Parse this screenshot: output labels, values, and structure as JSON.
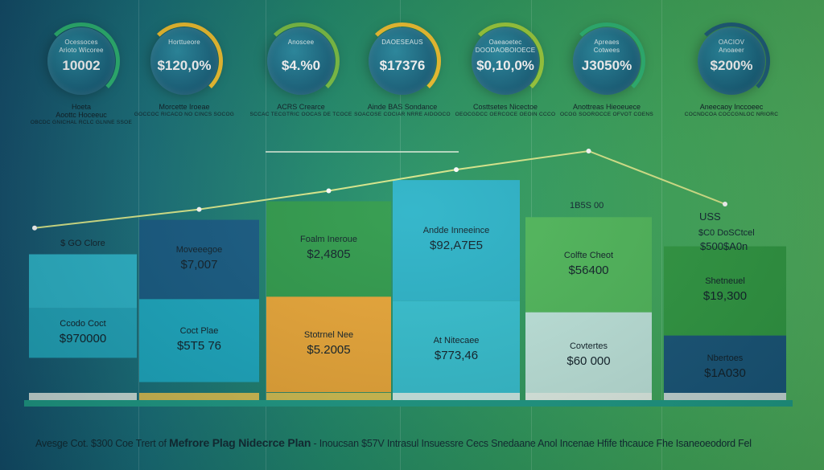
{
  "kpis": [
    {
      "label": "Ocessoces",
      "sub": "Arioto Wicoree",
      "value": "10002",
      "caption": "Hoeta",
      "caption2": "Aoottc Hoceeuc",
      "small": "OBCDC GNICHAL RCLC GLNNE SSOE",
      "arc": "#2bb673"
    },
    {
      "label": "Horttueore",
      "sub": "",
      "value": "$120,0%",
      "caption": "Morcette Iroeae",
      "caption2": "",
      "small": "GOCCOC RICACO NO CINCS SOCOG",
      "arc": "#f2c12e"
    },
    {
      "label": "Anoscee",
      "sub": "",
      "value": "$4.%0",
      "caption": "ACRS Crearce",
      "caption2": "",
      "small": "SCCAC TECGTRIC OOCAS DE TCOCE",
      "arc": "#7bc043"
    },
    {
      "label": "DAOESEAUS",
      "sub": "",
      "value": "$17376",
      "caption": "Ainde BAS Sondance",
      "caption2": "",
      "small": "SOACOSE COCIAR NRRE AIDOOCO",
      "arc": "#f2c12e"
    },
    {
      "label": "Oaeaoetec",
      "sub": "DOODAOBOIOECE",
      "value": "$0,10,0%",
      "caption": "Costtsetes Nicectoe",
      "caption2": "",
      "small": "OEOCGDCC OERCOCE OEOIN CCCO",
      "arc": "#9ccc3a"
    },
    {
      "label": "Apreaes",
      "sub": "Cotwees",
      "value": "J3050%",
      "caption": "Anottreas Hieoeuece",
      "caption2": "",
      "small": "OCOG SOOROCCE OFVOT COENS",
      "arc": "#2bb673"
    },
    {
      "label": "OACIOV",
      "sub": "Anoaeer",
      "value": "$200%",
      "caption": "Aneecaoy Inccoeec",
      "caption2": "",
      "small": "COCNDCOA COCCGNLOC NRIORC",
      "arc": "#1d5f7c"
    }
  ],
  "chart_data": {
    "type": "bar",
    "categories": [
      "$ GO Clore",
      "Moveeegoe",
      "Foalm Ineroue",
      "Andde Inneeince",
      "Colfte Cheot",
      "Shetneuel"
    ],
    "segments": [
      [
        {
          "name": "$ GO Clore",
          "value": "",
          "share": 0.37,
          "color": "#2ab3c8"
        },
        {
          "name": "Ccodo Coct",
          "value": "$970000",
          "share": 0.34,
          "color": "#1fa4ba"
        }
      ],
      [
        {
          "name": "Moveeegoe",
          "value": "$7,007",
          "share": 0.44,
          "color": "#155a82"
        },
        {
          "name": "Coct Plae",
          "value": "$5T5 76",
          "share": 0.46,
          "color": "#1aa8c0"
        }
      ],
      [
        {
          "name": "Foalm Ineroue",
          "value": "$2,4805",
          "share": 0.48,
          "color": "#2e9a4a"
        },
        {
          "name": "Stotrnel Nee",
          "value": "$5.2005",
          "share": 0.48,
          "color": "#e9a636"
        }
      ],
      [
        {
          "name": "Andde Inneeince",
          "value": "$92,A7E5",
          "share": 0.55,
          "color": "#2ab3c8"
        },
        {
          "name": "At Nitecaee",
          "value": "$773,46",
          "share": 0.45,
          "color": "#34bfcf"
        }
      ],
      [
        {
          "name": "Colfte Cheot",
          "value": "$56400",
          "share": 0.52,
          "color": "#4fb85a"
        },
        {
          "name": "Covtertes",
          "value": "$60 000",
          "share": 0.48,
          "color": "#bfe6dd"
        }
      ],
      [
        {
          "name": "Shetneuel",
          "value": "$19,300",
          "share": 0.58,
          "color": "#2f9a42"
        },
        {
          "name": "Nbertoes",
          "value": "$1A030",
          "share": 0.42,
          "color": "#17567a"
        }
      ]
    ],
    "heights": [
      0.55,
      0.68,
      0.75,
      0.83,
      0.69,
      0.58
    ],
    "trend": [
      0.71,
      0.78,
      0.85,
      0.93,
      1.0,
      0.8
    ],
    "float_labels": {
      "top": "1B5S 00",
      "right_a": "USS",
      "right_b": "$C0 DoSCtcel",
      "right_c": "$500$A0n"
    },
    "title": "",
    "xlabel": "",
    "ylabel": ""
  },
  "footer": {
    "prefix": "Avesge Cot. $300 Coe Trert of",
    "bold": "Mefrore Plag Nidecrce Plan",
    "middle": "- Inoucsan $57V",
    "suffix": "Intrasul Insuessre Cecs Snedaane Anol Incenae Hfife thcauce Fhe Isaneoeodord Fel"
  }
}
